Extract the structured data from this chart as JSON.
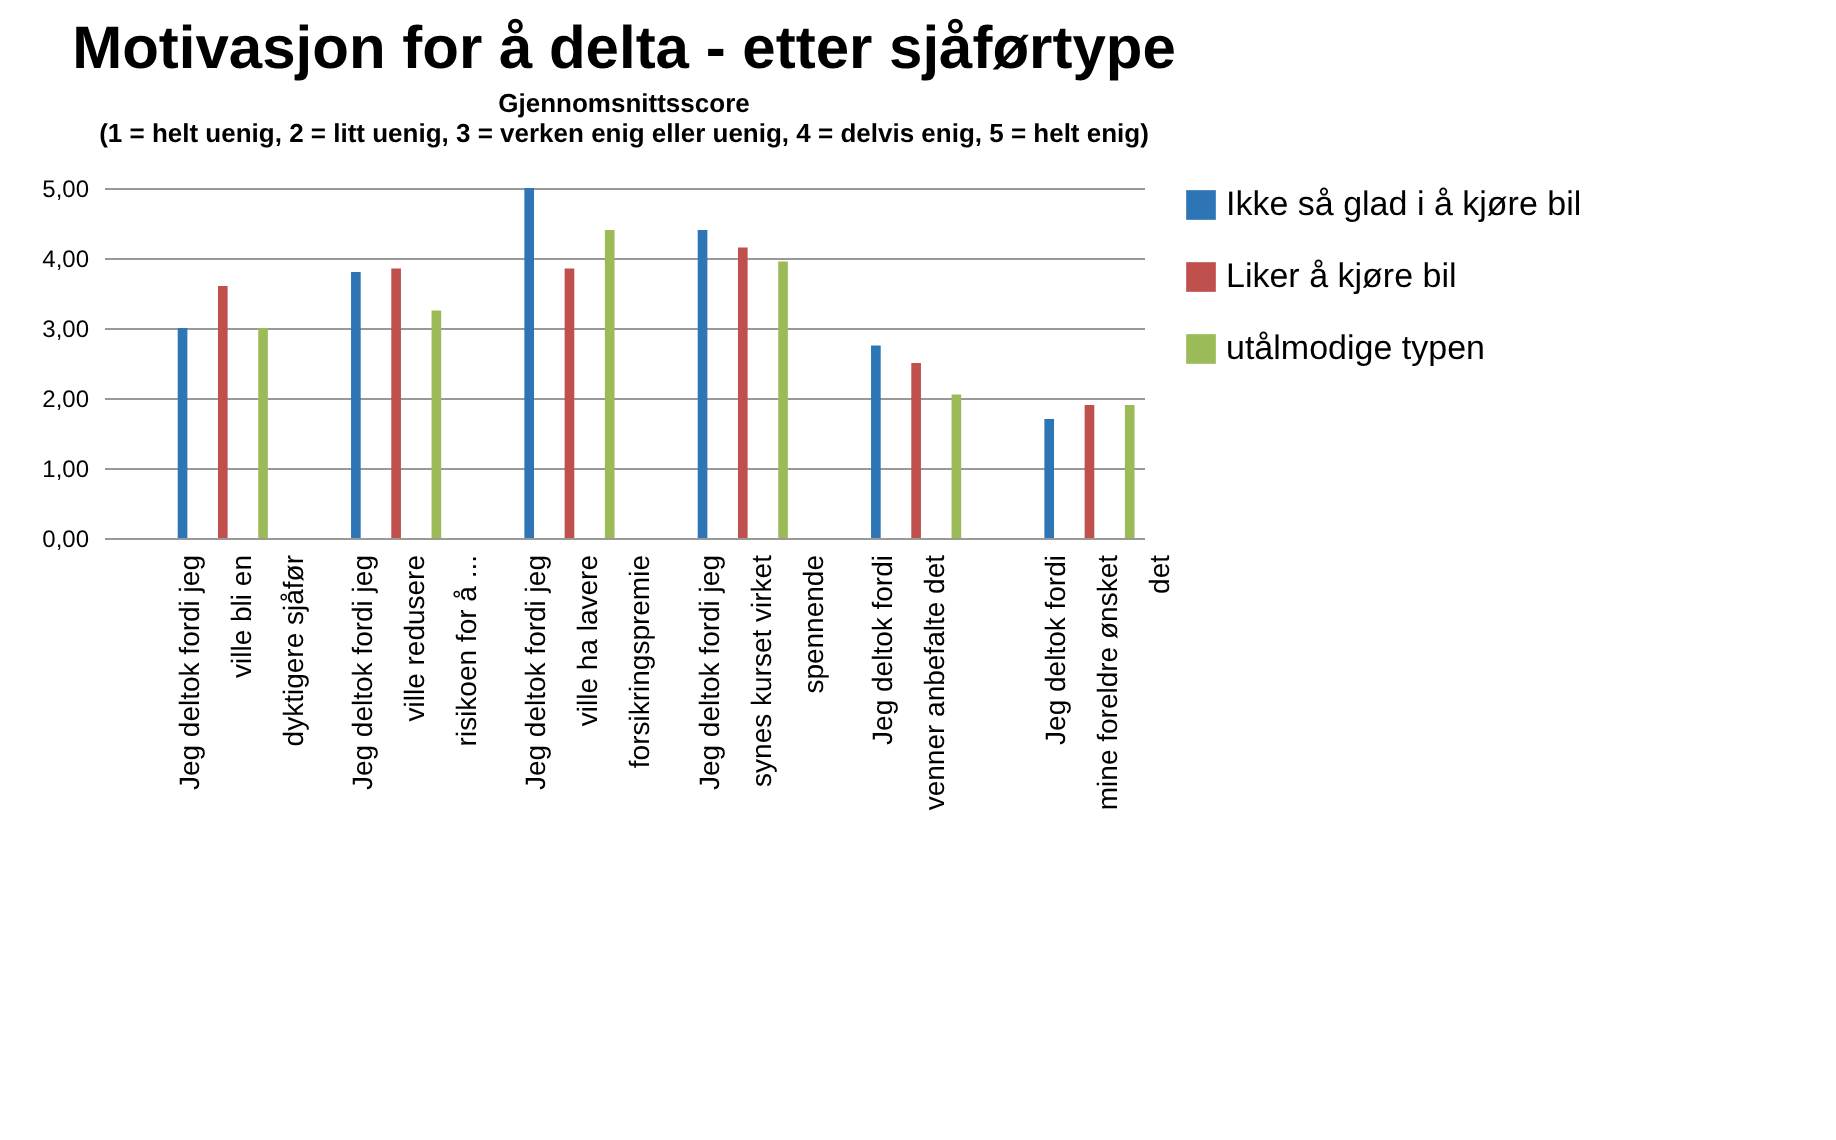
{
  "chart_data": {
    "type": "bar",
    "title": "Motivasjon  for å delta - etter sjåførtype",
    "subtitle": "Gjennomsnittsscore",
    "annotations": [
      "(1 = helt uenig, 2 = litt uenig, 3 = verken enig eller uenig, 4 = delvis enig, 5 = helt enig)"
    ],
    "categories": [
      "Jeg deltok fordi jeg ville bli en dyktigere sjåfør",
      "Jeg deltok fordi jeg ville redusere risikoen for å ...",
      "Jeg deltok fordi jeg ville ha lavere forsikringspremie",
      "Jeg deltok fordi jeg synes kurset virket spennende",
      "Jeg deltok fordi venner anbefalte det",
      "Jeg deltok fordi mine foreldre ønsket det"
    ],
    "series": [
      {
        "name": "Ikke så glad i å kjøre bil",
        "color": "#2e75b6",
        "values": [
          3.0,
          3.8,
          5.0,
          4.4,
          2.75,
          1.7
        ]
      },
      {
        "name": "Liker å kjøre bil",
        "color": "#c0504d",
        "values": [
          3.6,
          3.85,
          3.85,
          4.15,
          2.5,
          1.9
        ]
      },
      {
        "name": "utålmodige typen",
        "color": "#9bbb59",
        "values": [
          3.0,
          3.25,
          4.4,
          3.95,
          2.05,
          1.9
        ]
      }
    ],
    "ylim": [
      0,
      5
    ],
    "yticks": [
      {
        "value": 0,
        "label": "0,00"
      },
      {
        "value": 1,
        "label": "1,00"
      },
      {
        "value": 2,
        "label": "2,00"
      },
      {
        "value": 3,
        "label": "3,00"
      },
      {
        "value": 4,
        "label": "4,00"
      },
      {
        "value": 5,
        "label": "5,00"
      }
    ],
    "grid": "y",
    "legend": "right"
  }
}
